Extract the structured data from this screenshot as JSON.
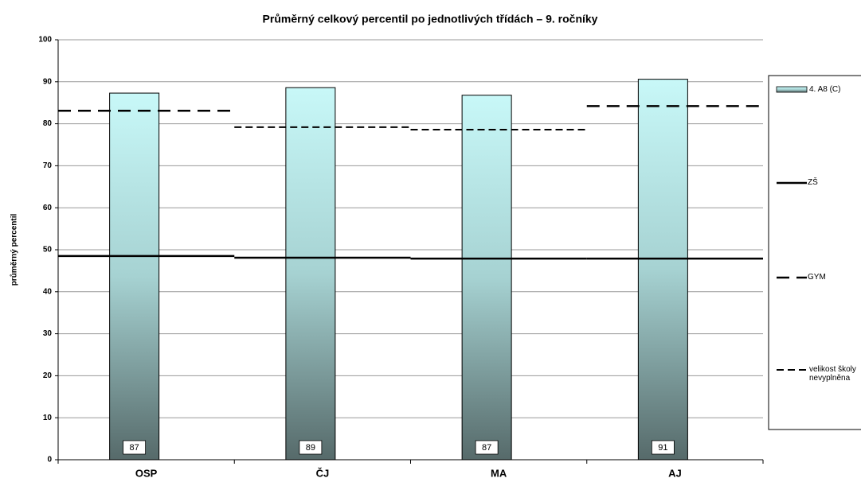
{
  "chart_data": {
    "type": "bar",
    "title": "Průměrný celkový percentil po jednotlivých třídách – 9. ročníky",
    "ylabel": "průměrný percentil",
    "categories": [
      "OSP",
      "ČJ",
      "MA",
      "AJ"
    ],
    "series": [
      {
        "name": "4. A8 (C)",
        "type": "bar",
        "color": "#c8f8f8",
        "values": [
          87.3,
          88.6,
          86.8,
          90.6
        ],
        "value_labels": [
          "87",
          "89",
          "87",
          "91"
        ]
      },
      {
        "name": "ZŠ",
        "type": "step",
        "style": "solid",
        "color": "#000000",
        "values": [
          48.5,
          48.1,
          47.9,
          47.9
        ]
      },
      {
        "name": "GYM",
        "type": "step",
        "style": "longdash",
        "color": "#000000",
        "values": [
          83.1,
          null,
          null,
          84.2
        ]
      },
      {
        "name": "velikost školy nevyplněna",
        "type": "step",
        "style": "shortdash",
        "color": "#000000",
        "values": [
          null,
          79.2,
          78.6,
          null
        ]
      }
    ],
    "ylim": [
      0,
      100
    ],
    "yticks": [
      0,
      10,
      20,
      30,
      40,
      50,
      60,
      70,
      80,
      90,
      100
    ],
    "grid": true,
    "legend": "right"
  }
}
